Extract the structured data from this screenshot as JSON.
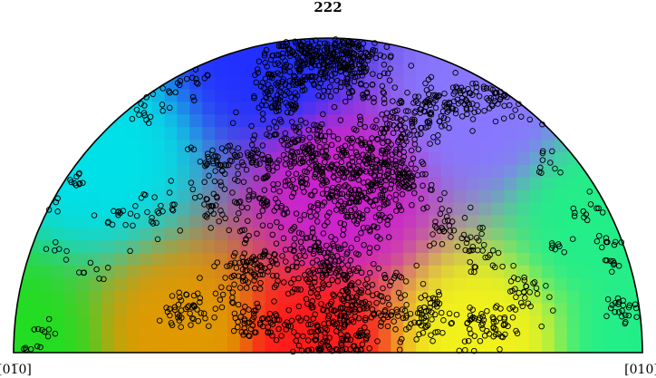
{
  "chart_data": {
    "type": "scatter",
    "projection": "upper-hemisphere pole figure (IPF-colored background)",
    "title": "222",
    "left_label": "[01̅0]",
    "right_label": "[010]",
    "marker": "open circle",
    "marker_color": "#000000",
    "background_colors": {
      "left_edge": "#22dd22",
      "upper_left": "#00e0e8",
      "top": "#2230ff",
      "center": "#cc22cc",
      "upper_right": "#8877ff",
      "right_edge": "#22ee88",
      "bottom_center": "#ff1a1a",
      "bottom_left": "#e09a00",
      "bottom_right": "#f2f21a"
    },
    "clusters": [
      {
        "x": -0.08,
        "y": 0.93,
        "spread": 0.07,
        "n": 220
      },
      {
        "x": 0.06,
        "y": 0.95,
        "spread": 0.05,
        "n": 140
      },
      {
        "x": -0.16,
        "y": 0.8,
        "spread": 0.05,
        "n": 70
      },
      {
        "x": 0.12,
        "y": 0.88,
        "spread": 0.06,
        "n": 70
      },
      {
        "x": -0.06,
        "y": 0.62,
        "spread": 0.08,
        "n": 160
      },
      {
        "x": 0.06,
        "y": 0.5,
        "spread": 0.09,
        "n": 200
      },
      {
        "x": 0.15,
        "y": 0.62,
        "spread": 0.07,
        "n": 90
      },
      {
        "x": 0.22,
        "y": 0.72,
        "spread": 0.06,
        "n": 80
      },
      {
        "x": 0.24,
        "y": 0.55,
        "spread": 0.05,
        "n": 70
      },
      {
        "x": 0.34,
        "y": 0.78,
        "spread": 0.05,
        "n": 70
      },
      {
        "x": 0.46,
        "y": 0.8,
        "spread": 0.05,
        "n": 60
      },
      {
        "x": 0.57,
        "y": 0.83,
        "spread": 0.04,
        "n": 40
      },
      {
        "x": -0.02,
        "y": 0.28,
        "spread": 0.08,
        "n": 150
      },
      {
        "x": 0.08,
        "y": 0.15,
        "spread": 0.08,
        "n": 140
      },
      {
        "x": 0.0,
        "y": 0.06,
        "spread": 0.07,
        "n": 110
      },
      {
        "x": -0.22,
        "y": 0.62,
        "spread": 0.05,
        "n": 60
      },
      {
        "x": -0.22,
        "y": 0.45,
        "spread": 0.05,
        "n": 50
      },
      {
        "x": -0.22,
        "y": 0.28,
        "spread": 0.05,
        "n": 50
      },
      {
        "x": -0.22,
        "y": 0.1,
        "spread": 0.05,
        "n": 60
      },
      {
        "x": -0.35,
        "y": 0.6,
        "spread": 0.05,
        "n": 40
      },
      {
        "x": -0.37,
        "y": 0.46,
        "spread": 0.03,
        "n": 25
      },
      {
        "x": -0.3,
        "y": 0.26,
        "spread": 0.04,
        "n": 30
      },
      {
        "x": -0.43,
        "y": 0.14,
        "spread": 0.05,
        "n": 50
      },
      {
        "x": -0.62,
        "y": 0.78,
        "spread": 0.05,
        "n": 35
      },
      {
        "x": -0.45,
        "y": 0.87,
        "spread": 0.04,
        "n": 20
      },
      {
        "x": -0.55,
        "y": 0.43,
        "spread": 0.05,
        "n": 25
      },
      {
        "x": -0.68,
        "y": 0.42,
        "spread": 0.03,
        "n": 12
      },
      {
        "x": -0.8,
        "y": 0.55,
        "spread": 0.02,
        "n": 12
      },
      {
        "x": -0.88,
        "y": 0.48,
        "spread": 0.02,
        "n": 8
      },
      {
        "x": -0.86,
        "y": 0.33,
        "spread": 0.02,
        "n": 6
      },
      {
        "x": -0.9,
        "y": 0.08,
        "spread": 0.02,
        "n": 8
      },
      {
        "x": -0.95,
        "y": 0.01,
        "spread": 0.02,
        "n": 6
      },
      {
        "x": -0.74,
        "y": 0.26,
        "spread": 0.03,
        "n": 8
      },
      {
        "x": 0.3,
        "y": 0.12,
        "spread": 0.06,
        "n": 70
      },
      {
        "x": 0.5,
        "y": 0.08,
        "spread": 0.05,
        "n": 60
      },
      {
        "x": 0.62,
        "y": 0.2,
        "spread": 0.04,
        "n": 30
      },
      {
        "x": 0.48,
        "y": 0.32,
        "spread": 0.04,
        "n": 30
      },
      {
        "x": 0.38,
        "y": 0.4,
        "spread": 0.05,
        "n": 30
      },
      {
        "x": 0.78,
        "y": 0.92,
        "spread": 0.03,
        "n": 20
      },
      {
        "x": 0.72,
        "y": 0.78,
        "spread": 0.04,
        "n": 25
      },
      {
        "x": 0.86,
        "y": 0.66,
        "spread": 0.03,
        "n": 15
      },
      {
        "x": 0.82,
        "y": 0.45,
        "spread": 0.03,
        "n": 12
      },
      {
        "x": 0.74,
        "y": 0.35,
        "spread": 0.02,
        "n": 8
      },
      {
        "x": 0.89,
        "y": 0.36,
        "spread": 0.02,
        "n": 10
      },
      {
        "x": 0.94,
        "y": 0.14,
        "spread": 0.03,
        "n": 25
      },
      {
        "x": 0.9,
        "y": 0.28,
        "spread": 0.02,
        "n": 8
      },
      {
        "x": 0.7,
        "y": 0.6,
        "spread": 0.03,
        "n": 10
      }
    ]
  }
}
